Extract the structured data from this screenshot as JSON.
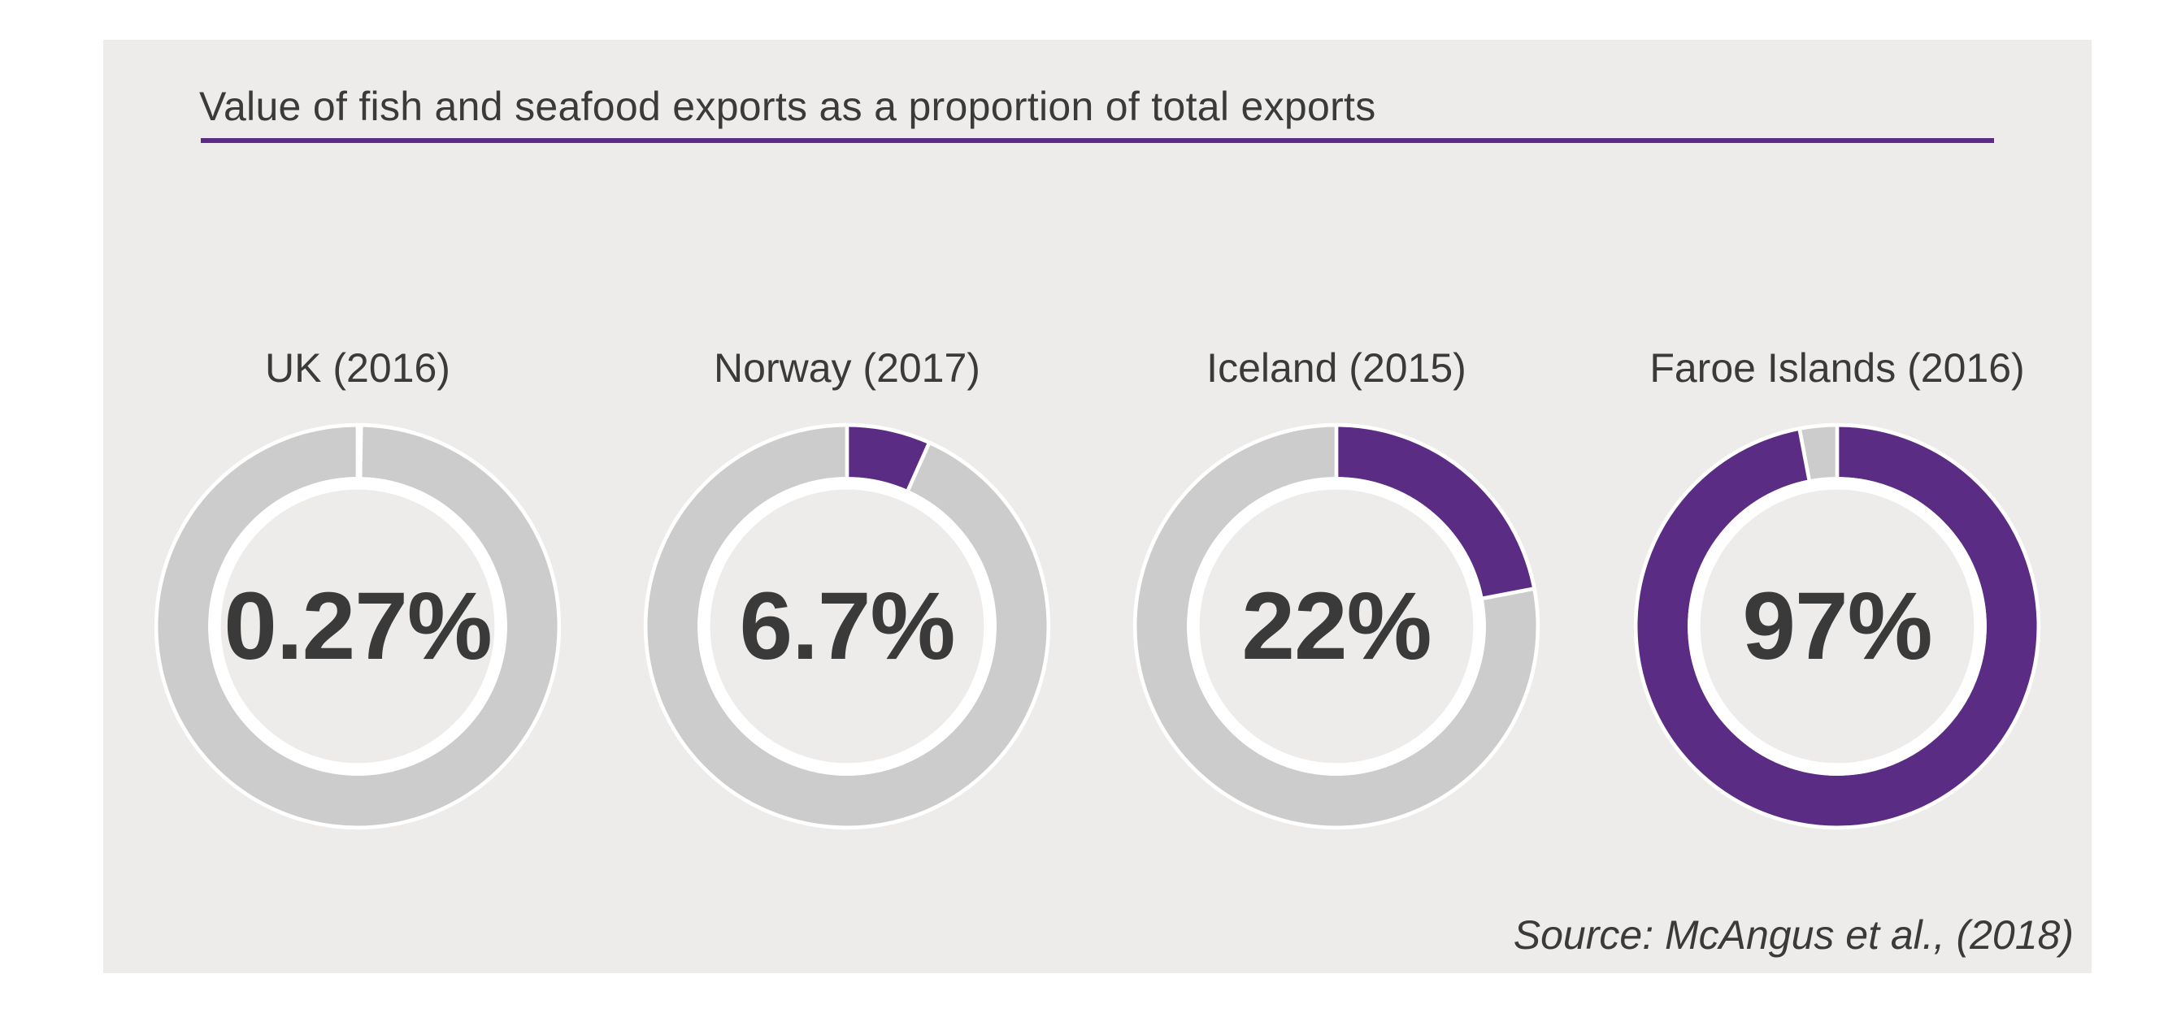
{
  "header": {
    "title": "Value of fish and seafood exports as a proportion of total exports"
  },
  "charts": [
    {
      "label": "UK (2016)",
      "percent_label": "0.27%",
      "value": 0.27
    },
    {
      "label": "Norway (2017)",
      "percent_label": "6.7%",
      "value": 6.7
    },
    {
      "label": "Iceland (2015)",
      "percent_label": "22%",
      "value": 22
    },
    {
      "label": "Faroe Islands (2016)",
      "percent_label": "97%",
      "value": 97
    }
  ],
  "source": {
    "text": "Source: McAngus et al., (2018)"
  },
  "colors": {
    "accent_purple": "#5B2C83",
    "ring_gray": "#CCCCCC",
    "separator_white": "#FFFFFF",
    "card_background": "#EDECEA",
    "text_dark": "#3A3A3A"
  },
  "chart_data": {
    "type": "pie",
    "variant": "donut",
    "title": "Value of fish and seafood exports as a proportion of total exports",
    "categories": [
      "UK (2016)",
      "Norway (2017)",
      "Iceland (2015)",
      "Faroe Islands (2016)"
    ],
    "values": [
      0.27,
      6.7,
      22,
      97
    ],
    "unit": "%",
    "value_labels": [
      "0.27%",
      "6.7%",
      "22%",
      "97%"
    ],
    "series_note": "Each donut: filled purple arc = percent of total exports, starts at 12 o'clock clockwise; remainder gray",
    "colors": {
      "filled": "#5B2C83",
      "remainder": "#CCCCCC"
    },
    "legend": false,
    "source": "Source: McAngus et al., (2018)"
  }
}
